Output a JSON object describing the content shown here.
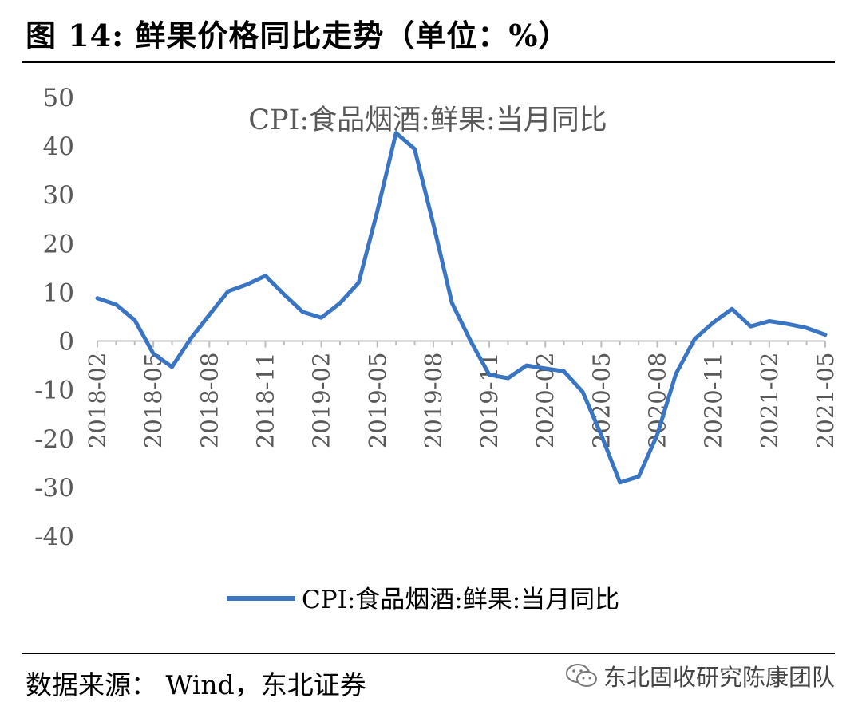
{
  "figure": {
    "title": "图  14:  鲜果价格同比走势（单位：%）",
    "source": "数据来源：  Wind，东北证券",
    "watermark": "东北固收研究陈康团队",
    "watermark_icon": "wechat-icon"
  },
  "chart_data": {
    "type": "line",
    "title": "CPI:食品烟酒:鲜果:当月同比",
    "xlabel": "",
    "ylabel": "",
    "ylim": [
      -40,
      50
    ],
    "yticks": [
      50,
      40,
      30,
      20,
      10,
      0,
      -10,
      -20,
      -30,
      -40
    ],
    "xticks": [
      "2018-02",
      "2018-05",
      "2018-08",
      "2018-11",
      "2019-02",
      "2019-05",
      "2019-08",
      "2019-11",
      "2020-02",
      "2020-05",
      "2020-08",
      "2020-11",
      "2021-02",
      "2021-05"
    ],
    "legend": "bottom",
    "color": "#3A75C4",
    "series": [
      {
        "name": "CPI:食品烟酒:鲜果:当月同比",
        "x": [
          "2018-02",
          "2018-03",
          "2018-04",
          "2018-05",
          "2018-06",
          "2018-07",
          "2018-08",
          "2018-09",
          "2018-10",
          "2018-11",
          "2018-12",
          "2019-01",
          "2019-02",
          "2019-03",
          "2019-04",
          "2019-05",
          "2019-06",
          "2019-07",
          "2019-08",
          "2019-09",
          "2019-10",
          "2019-11",
          "2019-12",
          "2020-01",
          "2020-02",
          "2020-03",
          "2020-04",
          "2020-05",
          "2020-06",
          "2020-07",
          "2020-08",
          "2020-09",
          "2020-10",
          "2020-11",
          "2020-12",
          "2021-01",
          "2021-02",
          "2021-03",
          "2021-04",
          "2021-05"
        ],
        "values": [
          8.8,
          7.5,
          4.3,
          -2.6,
          -5.3,
          0.5,
          5.4,
          10.2,
          11.6,
          13.4,
          9.6,
          6.0,
          4.8,
          7.8,
          12.0,
          26.7,
          42.7,
          39.4,
          24.0,
          7.8,
          0.0,
          -6.9,
          -7.6,
          -5.0,
          -5.6,
          -6.2,
          -10.4,
          -19.3,
          -29.0,
          -27.8,
          -19.2,
          -6.7,
          0.4,
          3.8,
          6.6,
          3.0,
          4.1,
          3.5,
          2.7,
          1.3
        ]
      }
    ]
  }
}
